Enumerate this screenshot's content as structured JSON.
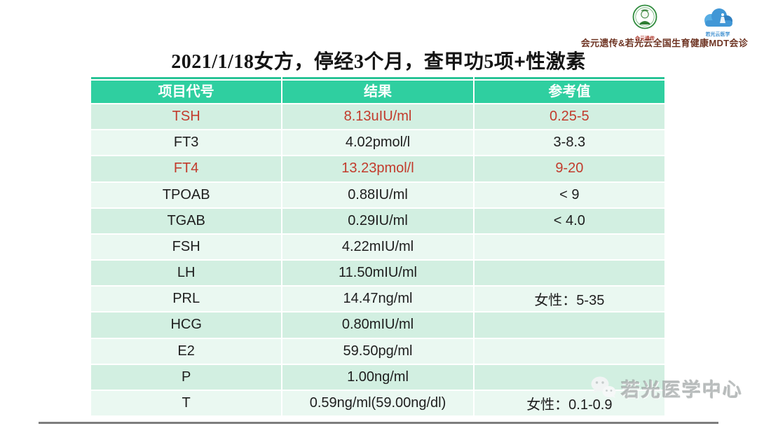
{
  "slide": {
    "title_segments": [
      {
        "text": "2021/1/18"
      },
      {
        "text": "女方，停经"
      },
      {
        "text": "3"
      },
      {
        "text": "个月，查甲功"
      },
      {
        "text": "5"
      },
      {
        "text": "项+性激素"
      }
    ],
    "title_full": "2021/1/18女方，停经3个月，查甲功5项+性激素",
    "logos": {
      "genetics_label": "会元遗传",
      "cloud_label": "若光云医学",
      "caption": "会元遗传&若光云全国生育健康MDT会诊"
    },
    "watermark_text": "若光医学中心"
  },
  "table": {
    "columns": [
      "项目代号",
      "结果",
      "参考值"
    ],
    "rows": [
      {
        "code": "TSH",
        "result": "8.13uIU/ml",
        "ref": "0.25-5",
        "highlight": true
      },
      {
        "code": "FT3",
        "result": "4.02pmol/l",
        "ref": "3-8.3",
        "highlight": false
      },
      {
        "code": "FT4",
        "result": "13.23pmol/l",
        "ref": "9-20",
        "highlight": true
      },
      {
        "code": "TPOAB",
        "result": "0.88IU/ml",
        "ref": "< 9",
        "highlight": false
      },
      {
        "code": "TGAB",
        "result": "0.29IU/ml",
        "ref": "< 4.0",
        "highlight": false
      },
      {
        "code": "FSH",
        "result": "4.22mIU/ml",
        "ref": "",
        "highlight": false
      },
      {
        "code": "LH",
        "result": "11.50mIU/ml",
        "ref": "",
        "highlight": false
      },
      {
        "code": "PRL",
        "result": "14.47ng/ml",
        "ref": "女性：5-35",
        "highlight": false
      },
      {
        "code": "HCG",
        "result": "0.80mIU/ml",
        "ref": "",
        "highlight": false
      },
      {
        "code": "E2",
        "result": "59.50pg/ml",
        "ref": "",
        "highlight": false
      },
      {
        "code": "P",
        "result": "1.00ng/ml",
        "ref": "",
        "highlight": false
      },
      {
        "code": "T",
        "result": "0.59ng/ml(59.00ng/dl)",
        "ref": "女性：0.1-0.9",
        "highlight": false
      }
    ]
  },
  "colors": {
    "header_bg": "#2FCFA0",
    "row_green": "#D2EFE1",
    "row_light": "#EAF8F1",
    "abnormal_text": "#C23B2C",
    "normal_text": "#1E1E1E",
    "caption_red": "#6E3423",
    "footer_line": "#7E7E7E"
  }
}
